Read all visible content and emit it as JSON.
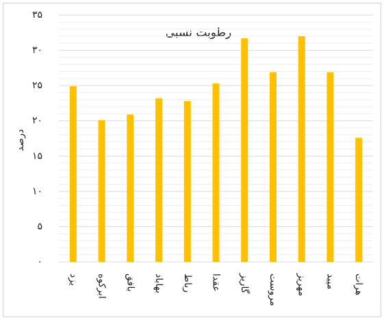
{
  "chart_data": {
    "type": "bar",
    "title": "رطوبت نسبی",
    "y_label": "درصد",
    "categories": [
      "یزد",
      "ابرکوه",
      "بافق",
      "بهاباد",
      "رباط",
      "عقدا",
      "گاریز",
      "مروست",
      "مهریز",
      "میبد",
      "هرات"
    ],
    "values": [
      24.9,
      20.1,
      20.9,
      23.2,
      22.8,
      25.3,
      31.7,
      26.9,
      32.0,
      26.9,
      17.6
    ],
    "color": "#ffc000",
    "ylim": [
      0,
      35
    ],
    "yticks": [
      {
        "value": 0,
        "label": "۰"
      },
      {
        "value": 5,
        "label": "۵"
      },
      {
        "value": 10,
        "label": "۱۰"
      },
      {
        "value": 15,
        "label": "۱۵"
      },
      {
        "value": 20,
        "label": "۲۰"
      },
      {
        "value": 25,
        "label": "۲۵"
      },
      {
        "value": 30,
        "label": "۳۰"
      },
      {
        "value": 35,
        "label": "۳۵"
      }
    ],
    "grid": true
  }
}
